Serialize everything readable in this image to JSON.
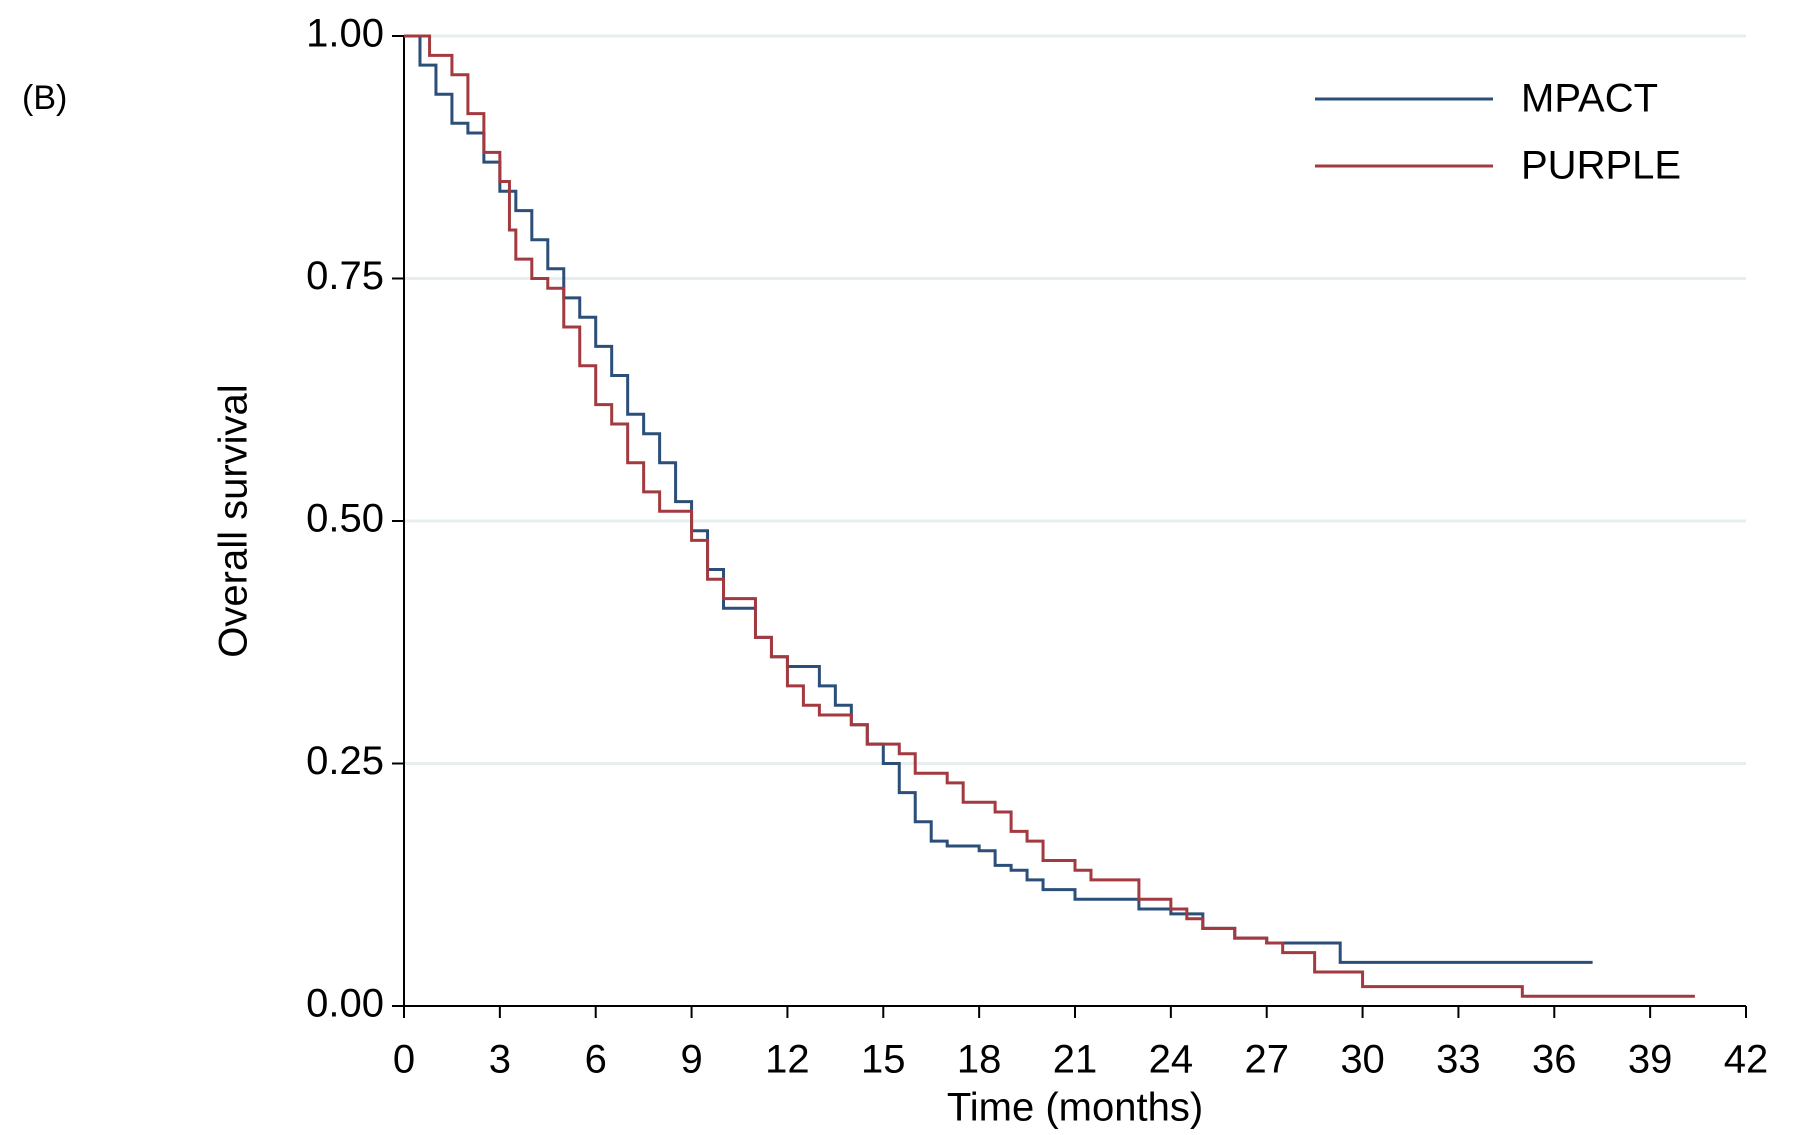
{
  "chart_data": {
    "type": "line",
    "drawstyle": "steps-post",
    "panel_label": "(B)",
    "xlabel": "Time (months)",
    "ylabel": "Overall survival",
    "xlim": [
      0,
      42
    ],
    "xticks": [
      0,
      3,
      6,
      9,
      12,
      15,
      18,
      21,
      24,
      27,
      30,
      33,
      36,
      39,
      42
    ],
    "ylim": [
      0,
      1
    ],
    "yticks": [
      {
        "value": 0,
        "label": "0.00"
      },
      {
        "value": 0.25,
        "label": "0.25"
      },
      {
        "value": 0.5,
        "label": "0.50"
      },
      {
        "value": 0.75,
        "label": "0.75"
      },
      {
        "value": 1,
        "label": "1.00"
      }
    ],
    "grid": true,
    "legend": "upper right",
    "series": [
      {
        "name": "MPACT",
        "color": "#2b4f78",
        "x": [
          0,
          0.5,
          1,
          1.5,
          2,
          2.5,
          3,
          3.5,
          4,
          4.5,
          5,
          5.5,
          6,
          6.5,
          7,
          7.5,
          8,
          8.5,
          9,
          9.5,
          10,
          11,
          11.5,
          12,
          13,
          13.5,
          14,
          14.5,
          15,
          15.5,
          16,
          16.5,
          17,
          18,
          18.5,
          19,
          19.5,
          20,
          21,
          23,
          24,
          25,
          26,
          27,
          29.3,
          37.2
        ],
        "values": [
          1,
          0.97,
          0.94,
          0.91,
          0.9,
          0.87,
          0.84,
          0.82,
          0.79,
          0.76,
          0.73,
          0.71,
          0.68,
          0.65,
          0.61,
          0.59,
          0.56,
          0.52,
          0.49,
          0.45,
          0.41,
          0.38,
          0.36,
          0.35,
          0.33,
          0.31,
          0.29,
          0.27,
          0.25,
          0.22,
          0.19,
          0.17,
          0.165,
          0.16,
          0.145,
          0.14,
          0.13,
          0.12,
          0.11,
          0.1,
          0.095,
          0.08,
          0.07,
          0.065,
          0.045,
          0.045
        ]
      },
      {
        "name": "PURPLE",
        "color": "#a23a40",
        "x": [
          0,
          0.8,
          1.5,
          2,
          2.5,
          3,
          3.3,
          3.5,
          4,
          4.5,
          5,
          5.5,
          6,
          6.5,
          7,
          7.5,
          8,
          9,
          9.5,
          10,
          11,
          11.5,
          12,
          12.5,
          13,
          14,
          14.5,
          15.5,
          16,
          17,
          17.5,
          18.5,
          19,
          19.5,
          20,
          21,
          21.5,
          23,
          24,
          24.5,
          25,
          26,
          27,
          27.5,
          28.5,
          30,
          35,
          40.4
        ],
        "values": [
          1,
          0.98,
          0.96,
          0.92,
          0.88,
          0.85,
          0.8,
          0.77,
          0.75,
          0.74,
          0.7,
          0.66,
          0.62,
          0.6,
          0.56,
          0.53,
          0.51,
          0.48,
          0.44,
          0.42,
          0.38,
          0.36,
          0.33,
          0.31,
          0.3,
          0.29,
          0.27,
          0.26,
          0.24,
          0.23,
          0.21,
          0.2,
          0.18,
          0.17,
          0.15,
          0.14,
          0.13,
          0.11,
          0.1,
          0.09,
          0.08,
          0.07,
          0.065,
          0.055,
          0.035,
          0.02,
          0.01,
          0.01
        ]
      }
    ]
  }
}
